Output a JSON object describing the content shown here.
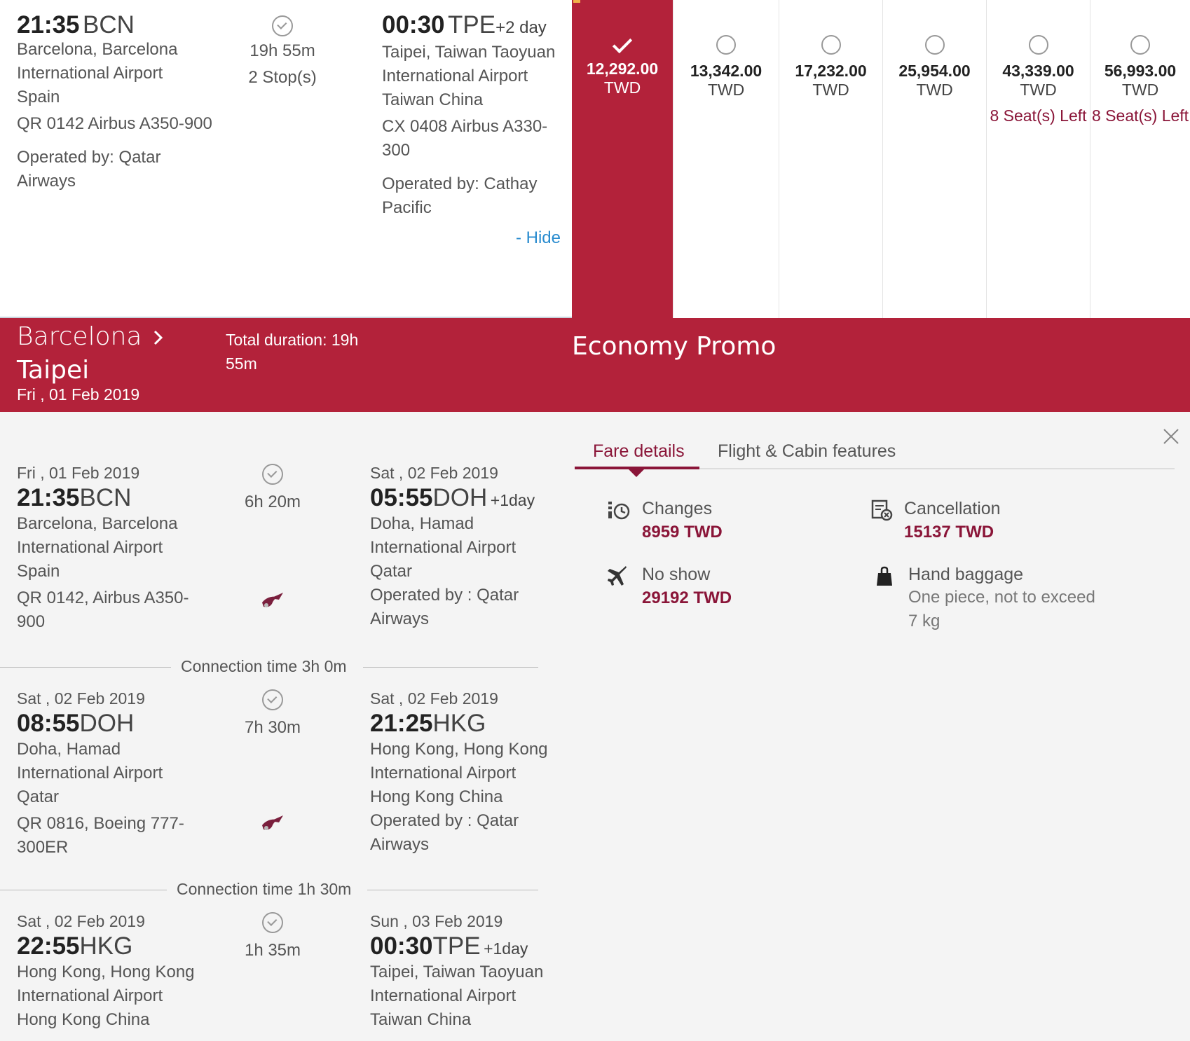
{
  "summary": {
    "dep_time": "21:35",
    "dep_code": "BCN",
    "dep_city": "Barcelona, Barcelona",
    "dep_airport": "International Airport",
    "dep_country": "Spain",
    "dep_flight": "QR 0142 Airbus A350-900",
    "dep_operated_1": "Operated by: Qatar",
    "dep_operated_2": "Airways",
    "duration": "19h 55m",
    "stops": "2 Stop(s)",
    "arr_time": "00:30",
    "arr_code": "TPE",
    "arr_plus": "+2 day",
    "arr_city": "Taipei, Taiwan Taoyuan",
    "arr_airport": "International Airport",
    "arr_country": "Taiwan China",
    "arr_flight_1": "CX 0408 Airbus A330-",
    "arr_flight_2": "300",
    "arr_operated_1": "Operated by: Cathay",
    "arr_operated_2": "Pacific",
    "hide_link": "- Hide"
  },
  "fares": [
    {
      "amount": "12,292.00",
      "currency": "TWD",
      "selected": true,
      "seats": ""
    },
    {
      "amount": "13,342.00",
      "currency": "TWD",
      "selected": false,
      "seats": ""
    },
    {
      "amount": "17,232.00",
      "currency": "TWD",
      "selected": false,
      "seats": ""
    },
    {
      "amount": "25,954.00",
      "currency": "TWD",
      "selected": false,
      "seats": ""
    },
    {
      "amount": "43,339.00",
      "currency": "TWD",
      "selected": false,
      "seats": "8 Seat(s) Left"
    },
    {
      "amount": "56,993.00",
      "currency": "TWD",
      "selected": false,
      "seats": "8 Seat(s) Left"
    }
  ],
  "band": {
    "origin": "Barcelona",
    "destination": "Taipei",
    "date": "Fri , 01 Feb 2019",
    "total_duration_1": "Total duration: 19h",
    "total_duration_2": "55m",
    "cabin": "Economy Promo"
  },
  "segments": [
    {
      "dep_date": "Fri , 01 Feb 2019",
      "dep_time": "21:35",
      "dep_code": "BCN",
      "dep_l1": "Barcelona, Barcelona",
      "dep_l2": "International Airport",
      "dep_l3": "Spain",
      "flight_1": "QR 0142, Airbus A350-",
      "flight_2": "900",
      "duration": "6h 20m",
      "arr_date": "Sat , 02 Feb 2019",
      "arr_time": "05:55",
      "arr_code": "DOH",
      "arr_plus": "+1day",
      "arr_l1": "Doha, Hamad",
      "arr_l2": "International Airport",
      "arr_l3": "Qatar",
      "op_1": "Operated by : Qatar",
      "op_2": "Airways"
    },
    {
      "dep_date": "Sat , 02 Feb 2019",
      "dep_time": "08:55",
      "dep_code": "DOH",
      "dep_l1": "Doha, Hamad",
      "dep_l2": "International Airport",
      "dep_l3": "Qatar",
      "flight_1": "QR 0816, Boeing 777-",
      "flight_2": "300ER",
      "duration": "7h 30m",
      "arr_date": "Sat , 02 Feb 2019",
      "arr_time": "21:25",
      "arr_code": "HKG",
      "arr_plus": "",
      "arr_l1": "Hong Kong, Hong Kong",
      "arr_l2": "International Airport",
      "arr_l3": "Hong Kong China",
      "op_1": "Operated by : Qatar",
      "op_2": "Airways"
    },
    {
      "dep_date": "Sat , 02 Feb 2019",
      "dep_time": "22:55",
      "dep_code": "HKG",
      "dep_l1": "Hong Kong, Hong Kong",
      "dep_l2": "International Airport",
      "dep_l3": "Hong Kong China",
      "duration": "1h 35m",
      "arr_date": "Sun , 03 Feb 2019",
      "arr_time": "00:30",
      "arr_code": "TPE",
      "arr_plus": "+1day",
      "arr_l1": "Taipei, Taiwan Taoyuan",
      "arr_l2": "International Airport",
      "arr_l3": "Taiwan China"
    }
  ],
  "connections": [
    "Connection time 3h 0m",
    "Connection time 1h 30m"
  ],
  "fare_panel": {
    "tab_fare": "Fare details",
    "tab_features": "Flight & Cabin features",
    "changes_label": "Changes",
    "changes_value": "8959 TWD",
    "cancel_label": "Cancellation",
    "cancel_value": "15137 TWD",
    "noshow_label": "No show",
    "noshow_value": "29192 TWD",
    "bag_label": "Hand baggage",
    "bag_1": "One piece, not to exceed",
    "bag_2": "7 kg"
  }
}
